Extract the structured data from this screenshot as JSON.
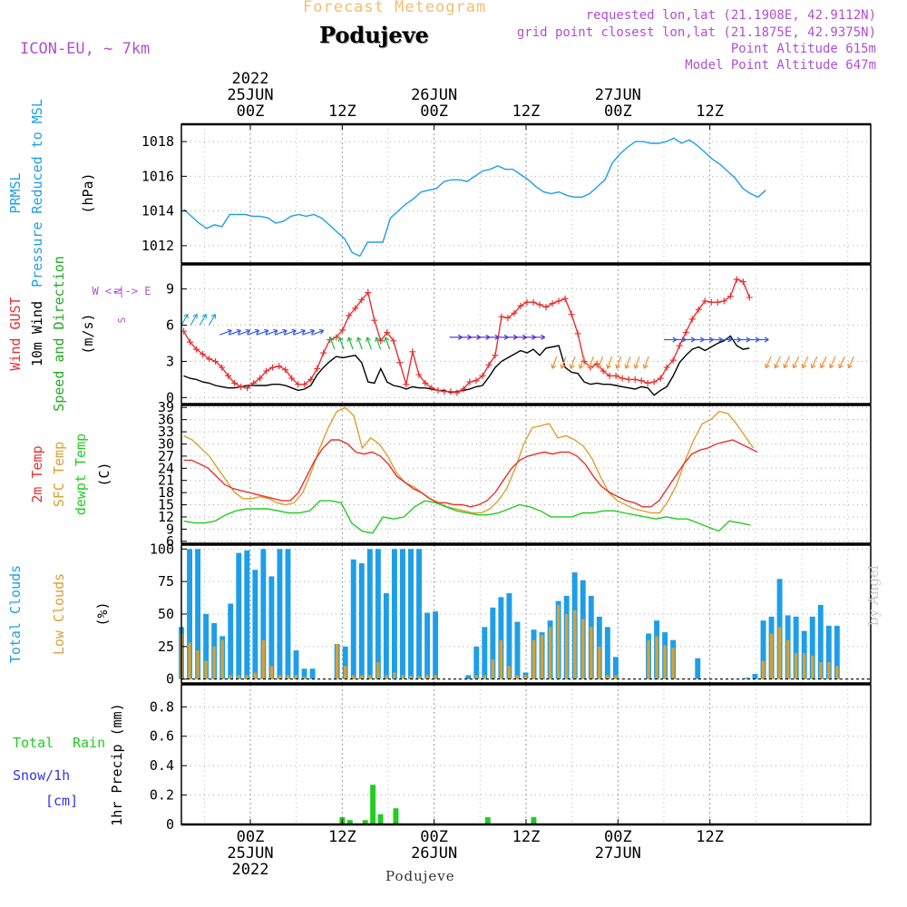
{
  "header": {
    "title": "Forecast Meteogram",
    "location": "Podujeve",
    "model": "ICON-EU, ~ 7km",
    "requested": "requested lon,lat (21.1908E, 42.9112N)",
    "grid_point": "grid point closest lon,lat (21.1875E, 42.9375N)",
    "point_altitude": "Point Altitude 615m",
    "model_altitude": "Model Point Altitude 647m"
  },
  "footer": {
    "location": "Podujeve",
    "credit": "by Angel"
  },
  "colors": {
    "pressure": "#1e9ee8",
    "gust": "#e83030",
    "wind": "#000000",
    "wind_label": "#22aa22",
    "temp2m": "#e83030",
    "sfc": "#daa030",
    "dewpt": "#22cc22",
    "total_clouds": "#1e9ee8",
    "low_clouds": "#daa030",
    "rain": "#22cc22",
    "snow": "#3333ee",
    "header_title": "#f0c070",
    "header_meta": "#b050d0"
  },
  "panels": {
    "pressure": {
      "labels": [
        "PRMSL",
        "Pressure Reduced to MSL"
      ],
      "unit": "(hPa)"
    },
    "wind": {
      "labels": [
        "Wind GUST",
        "10m Wind",
        "Speed and Direction"
      ],
      "unit": "(m/s)",
      "compass": [
        "N",
        "W <-|-> E",
        "S"
      ]
    },
    "temperature": {
      "labels": [
        "2m Temp",
        "SFC Temp",
        "dewpt Temp"
      ],
      "unit": "(C)"
    },
    "clouds": {
      "labels": [
        "Total Clouds",
        "Low Clouds"
      ],
      "unit": "(%)"
    },
    "precip": {
      "labels": [
        "Total Rain",
        "Snow/1h",
        "[cm]"
      ],
      "unit": "1hr Precip (mm)"
    }
  },
  "chart_data": {
    "type": "line",
    "x_unit": "hours from 2022-06-24 15Z (1 step = 1h)",
    "time_axis": {
      "top_labels": [
        {
          "hour": 9,
          "lines": [
            "2022",
            "25JUN",
            "00Z"
          ]
        },
        {
          "hour": 21,
          "lines": [
            "12Z"
          ]
        },
        {
          "hour": 33,
          "lines": [
            "26JUN",
            "00Z"
          ]
        },
        {
          "hour": 45,
          "lines": [
            "12Z"
          ]
        },
        {
          "hour": 57,
          "lines": [
            "27JUN",
            "00Z"
          ]
        },
        {
          "hour": 69,
          "lines": [
            "12Z"
          ]
        }
      ],
      "bottom_labels": [
        {
          "hour": 9,
          "lines": [
            "00Z",
            "25JUN",
            "2022"
          ]
        },
        {
          "hour": 21,
          "lines": [
            "12Z"
          ]
        },
        {
          "hour": 33,
          "lines": [
            "00Z",
            "26JUN"
          ]
        },
        {
          "hour": 45,
          "lines": [
            "12Z"
          ]
        },
        {
          "hour": 57,
          "lines": [
            "00Z",
            "27JUN"
          ]
        },
        {
          "hour": 69,
          "lines": [
            "12Z"
          ]
        }
      ]
    },
    "pressure": {
      "ylim": [
        1011,
        1019
      ],
      "yticks": [
        1012,
        1014,
        1016,
        1018
      ],
      "values": [
        1014.1,
        1013.7,
        1013.3,
        1013.0,
        1013.2,
        1013.1,
        1013.8,
        1013.8,
        1013.8,
        1013.7,
        1013.7,
        1013.6,
        1013.3,
        1013.4,
        1013.7,
        1013.8,
        1013.7,
        1013.8,
        1013.6,
        1013.2,
        1012.8,
        1012.4,
        1011.6,
        1011.4,
        1012.2,
        1012.2,
        1012.2,
        1013.6,
        1014.0,
        1014.4,
        1014.7,
        1015.1,
        1015.2,
        1015.3,
        1015.7,
        1015.8,
        1015.8,
        1015.7,
        1016.0,
        1016.3,
        1016.4,
        1016.6,
        1016.4,
        1016.4,
        1016.1,
        1015.8,
        1015.4,
        1015.1,
        1015.0,
        1015.1,
        1014.9,
        1014.8,
        1014.8,
        1015.0,
        1015.4,
        1015.8,
        1016.8,
        1017.3,
        1017.7,
        1018.0,
        1018.0,
        1017.9,
        1017.9,
        1018.0,
        1018.2,
        1017.9,
        1018.1,
        1017.8,
        1017.4,
        1017.0,
        1016.7,
        1016.3,
        1015.9,
        1015.3,
        1015.0,
        1014.8,
        1015.2
      ]
    },
    "wind": {
      "ylim": [
        -0.5,
        11
      ],
      "yticks": [
        0,
        3,
        6,
        9
      ],
      "gust": [
        5.5,
        4.6,
        4.0,
        3.6,
        3.2,
        3.0,
        2.5,
        1.8,
        1.2,
        0.9,
        0.8,
        1.2,
        1.6,
        2.2,
        2.5,
        2.6,
        2.3,
        1.6,
        1.1,
        1.1,
        1.5,
        2.4,
        3.7,
        4.8,
        5.0,
        5.6,
        6.8,
        7.4,
        8.1,
        8.7,
        6.4,
        4.7,
        5.4,
        4.7,
        2.9,
        1.1,
        3.8,
        1.9,
        1.2,
        0.8,
        0.6,
        0.5,
        0.5,
        0.4,
        0.7,
        1.3,
        1.4,
        1.8,
        2.7,
        3.5,
        6.7,
        6.6,
        7.0,
        7.6,
        7.9,
        7.9,
        7.7,
        7.5,
        7.8,
        8.0,
        8.2,
        6.9,
        5.3,
        3.0,
        2.5,
        2.8,
        2.2,
        1.8,
        1.8,
        1.6,
        1.5,
        1.5,
        1.4,
        1.2,
        1.3,
        1.6,
        2.5,
        3.1,
        4.3,
        5.4,
        6.5,
        7.3,
        8.0,
        7.9,
        7.9,
        8.0,
        8.4,
        9.8,
        9.6,
        8.3
      ],
      "speed": [
        1.8,
        1.6,
        1.5,
        1.3,
        1.2,
        1.0,
        0.9,
        0.8,
        0.8,
        0.9,
        1.0,
        1.0,
        1.0,
        1.0,
        1.1,
        1.1,
        1.0,
        0.8,
        0.6,
        0.7,
        1.0,
        1.9,
        2.5,
        3.0,
        3.4,
        3.3,
        3.4,
        3.5,
        2.9,
        1.3,
        1.2,
        2.4,
        1.3,
        1.0,
        0.9,
        0.7,
        0.9,
        0.8,
        0.8,
        0.7,
        0.6,
        0.6,
        0.4,
        0.5,
        0.6,
        0.7,
        0.9,
        1.0,
        1.7,
        2.5,
        3.0,
        3.3,
        3.6,
        3.9,
        3.7,
        4.0,
        3.5,
        4.1,
        4.2,
        4.3,
        2.5,
        2.1,
        2.0,
        1.3,
        1.1,
        1.2,
        1.1,
        1.1,
        1.0,
        0.9,
        0.8,
        0.7,
        0.9,
        0.8,
        0.2,
        0.6,
        0.9,
        1.8,
        2.9,
        3.5,
        4.0,
        4.2,
        3.9,
        4.2,
        4.5,
        4.7,
        5.1,
        4.3,
        4.0,
        4.1
      ]
    },
    "temperature": {
      "ylim": [
        5.5,
        39.5
      ],
      "yticks": [
        6,
        9,
        12,
        15,
        18,
        21,
        24,
        27,
        30,
        33,
        36,
        39
      ],
      "t2m": [
        26.0,
        26.0,
        25.0,
        24.0,
        22.0,
        20.0,
        19.0,
        18.5,
        18.0,
        17.5,
        17.0,
        16.5,
        16.0,
        16.0,
        18.0,
        22.0,
        26.0,
        29.0,
        31.0,
        31.0,
        30.0,
        28.0,
        27.5,
        28.0,
        27.0,
        25.0,
        22.0,
        20.5,
        19.0,
        18.0,
        16.5,
        15.5,
        15.5,
        15.0,
        15.0,
        14.5,
        15.0,
        16.0,
        18.0,
        21.0,
        24.0,
        26.0,
        27.0,
        27.5,
        28.0,
        27.5,
        28.0,
        28.0,
        27.0,
        25.0,
        22.0,
        19.5,
        18.0,
        17.0,
        16.0,
        15.5,
        14.5,
        14.5,
        16.0,
        19.0,
        22.0,
        25.0,
        27.5,
        28.5,
        29.0,
        30.0,
        30.5,
        31.0,
        30.0,
        29.0,
        28.0
      ],
      "sfc": [
        32.0,
        31.0,
        29.0,
        27.0,
        24.0,
        21.0,
        18.0,
        16.5,
        16.5,
        17.0,
        16.5,
        15.5,
        15.0,
        15.5,
        18.0,
        23.0,
        29.0,
        34.0,
        38.0,
        39.0,
        37.0,
        29.0,
        31.5,
        30.0,
        27.0,
        23.0,
        20.5,
        19.5,
        18.0,
        16.5,
        15.5,
        14.5,
        14.0,
        13.5,
        13.0,
        13.0,
        14.0,
        16.0,
        19.0,
        24.0,
        30.0,
        34.0,
        34.5,
        35.0,
        31.5,
        32.0,
        31.0,
        29.5,
        26.5,
        22.0,
        18.0,
        16.0,
        15.0,
        14.0,
        13.5,
        13.0,
        13.0,
        16.0,
        20.0,
        26.0,
        31.0,
        35.0,
        36.0,
        38.0,
        37.5,
        35.0,
        32.0,
        29.0
      ],
      "dewpt": [
        11.0,
        10.5,
        10.5,
        11.0,
        12.5,
        13.5,
        14.0,
        14.0,
        14.0,
        13.5,
        13.0,
        13.0,
        13.5,
        16.0,
        16.0,
        15.5,
        10.5,
        8.5,
        8.0,
        12.0,
        11.5,
        12.0,
        14.5,
        16.0,
        15.5,
        14.5,
        13.5,
        13.0,
        12.5,
        12.5,
        13.0,
        14.0,
        15.0,
        14.5,
        13.5,
        12.0,
        12.0,
        12.0,
        13.0,
        13.0,
        13.5,
        13.5,
        13.0,
        12.5,
        12.0,
        11.5,
        12.0,
        11.5,
        11.5,
        10.5,
        9.5,
        8.5,
        11.0,
        10.5,
        10.0
      ]
    },
    "clouds": {
      "ylim": [
        -3,
        103
      ],
      "yticks": [
        0,
        25,
        50,
        75,
        100
      ],
      "total": [
        40,
        100,
        100,
        50,
        43,
        33,
        58,
        97,
        99,
        84,
        100,
        79,
        100,
        100,
        22,
        8,
        8,
        0,
        0,
        27,
        25,
        92,
        89,
        100,
        100,
        66,
        100,
        100,
        100,
        100,
        51,
        52,
        0,
        0,
        0,
        3,
        25,
        40,
        55,
        63,
        66,
        44,
        5,
        38,
        36,
        45,
        60,
        64,
        82,
        76,
        64,
        48,
        40,
        17,
        0,
        0,
        0,
        35,
        45,
        36,
        30,
        0,
        0,
        16,
        0,
        0,
        0,
        0,
        0,
        1,
        4,
        45,
        48,
        77,
        49,
        48,
        37,
        48,
        57,
        41,
        41
      ],
      "low": [
        35,
        28,
        22,
        14,
        25,
        30,
        3,
        3,
        3,
        5,
        30,
        10,
        3,
        3,
        3,
        2,
        0,
        0,
        0,
        27,
        10,
        3,
        3,
        3,
        13,
        3,
        5,
        3,
        3,
        2,
        3,
        3,
        0,
        0,
        0,
        0,
        3,
        3,
        15,
        30,
        10,
        3,
        3,
        30,
        34,
        40,
        57,
        50,
        53,
        46,
        40,
        25,
        3,
        3,
        0,
        0,
        0,
        30,
        33,
        26,
        24,
        0,
        0,
        0,
        0,
        0,
        0,
        0,
        0,
        0,
        0,
        14,
        35,
        40,
        30,
        20,
        20,
        18,
        13,
        13,
        10
      ]
    },
    "precip": {
      "ylim": [
        0,
        0.95
      ],
      "yticks": [
        0,
        0.2,
        0.4,
        0.6,
        0.8
      ],
      "rain": [
        {
          "hour": 21,
          "value": 0.05
        },
        {
          "hour": 22,
          "value": 0.03
        },
        {
          "hour": 24,
          "value": 0.03
        },
        {
          "hour": 25,
          "value": 0.27
        },
        {
          "hour": 26,
          "value": 0.07
        },
        {
          "hour": 28,
          "value": 0.11
        },
        {
          "hour": 40,
          "value": 0.05
        },
        {
          "hour": 46,
          "value": 0.05
        }
      ],
      "snow": []
    }
  }
}
